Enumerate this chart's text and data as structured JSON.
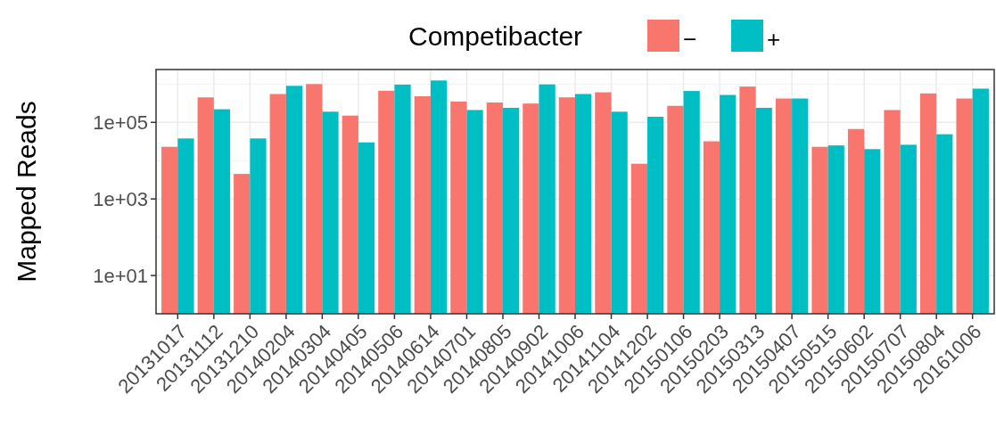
{
  "chart_data": {
    "type": "bar",
    "ylabel": "Mapped Reads",
    "legend_title": "Competibacter",
    "legend": "top",
    "log": true,
    "grid": true,
    "categories": [
      "20131017",
      "20131112",
      "20131210",
      "20140204",
      "20140304",
      "20140405",
      "20140506",
      "20140614",
      "20140701",
      "20140805",
      "20140902",
      "20141006",
      "20141104",
      "20141202",
      "20150106",
      "20150203",
      "20150313",
      "20150407",
      "20150515",
      "20150602",
      "20150707",
      "20150804",
      "20161006"
    ],
    "series": [
      {
        "name": "−",
        "color": "#f8766d",
        "values": [
          23000,
          450000,
          4500,
          550000,
          1000000,
          150000,
          670000,
          480000,
          350000,
          330000,
          310000,
          450000,
          610000,
          8300,
          270000,
          32000,
          860000,
          420000,
          23000,
          67000,
          210000,
          570000,
          420000
        ]
      },
      {
        "name": "+",
        "color": "#00bfc4",
        "values": [
          38000,
          220000,
          38000,
          900000,
          190000,
          30000,
          970000,
          1240000,
          210000,
          240000,
          980000,
          550000,
          190000,
          140000,
          660000,
          520000,
          240000,
          420000,
          25000,
          20000,
          26000,
          49000,
          760000
        ]
      }
    ],
    "ylim": [
      1,
      2400000
    ],
    "yticks": [
      {
        "value": 10,
        "label": "1e+01"
      },
      {
        "value": 1000,
        "label": "1e+03"
      },
      {
        "value": 100000,
        "label": "1e+05"
      }
    ]
  }
}
